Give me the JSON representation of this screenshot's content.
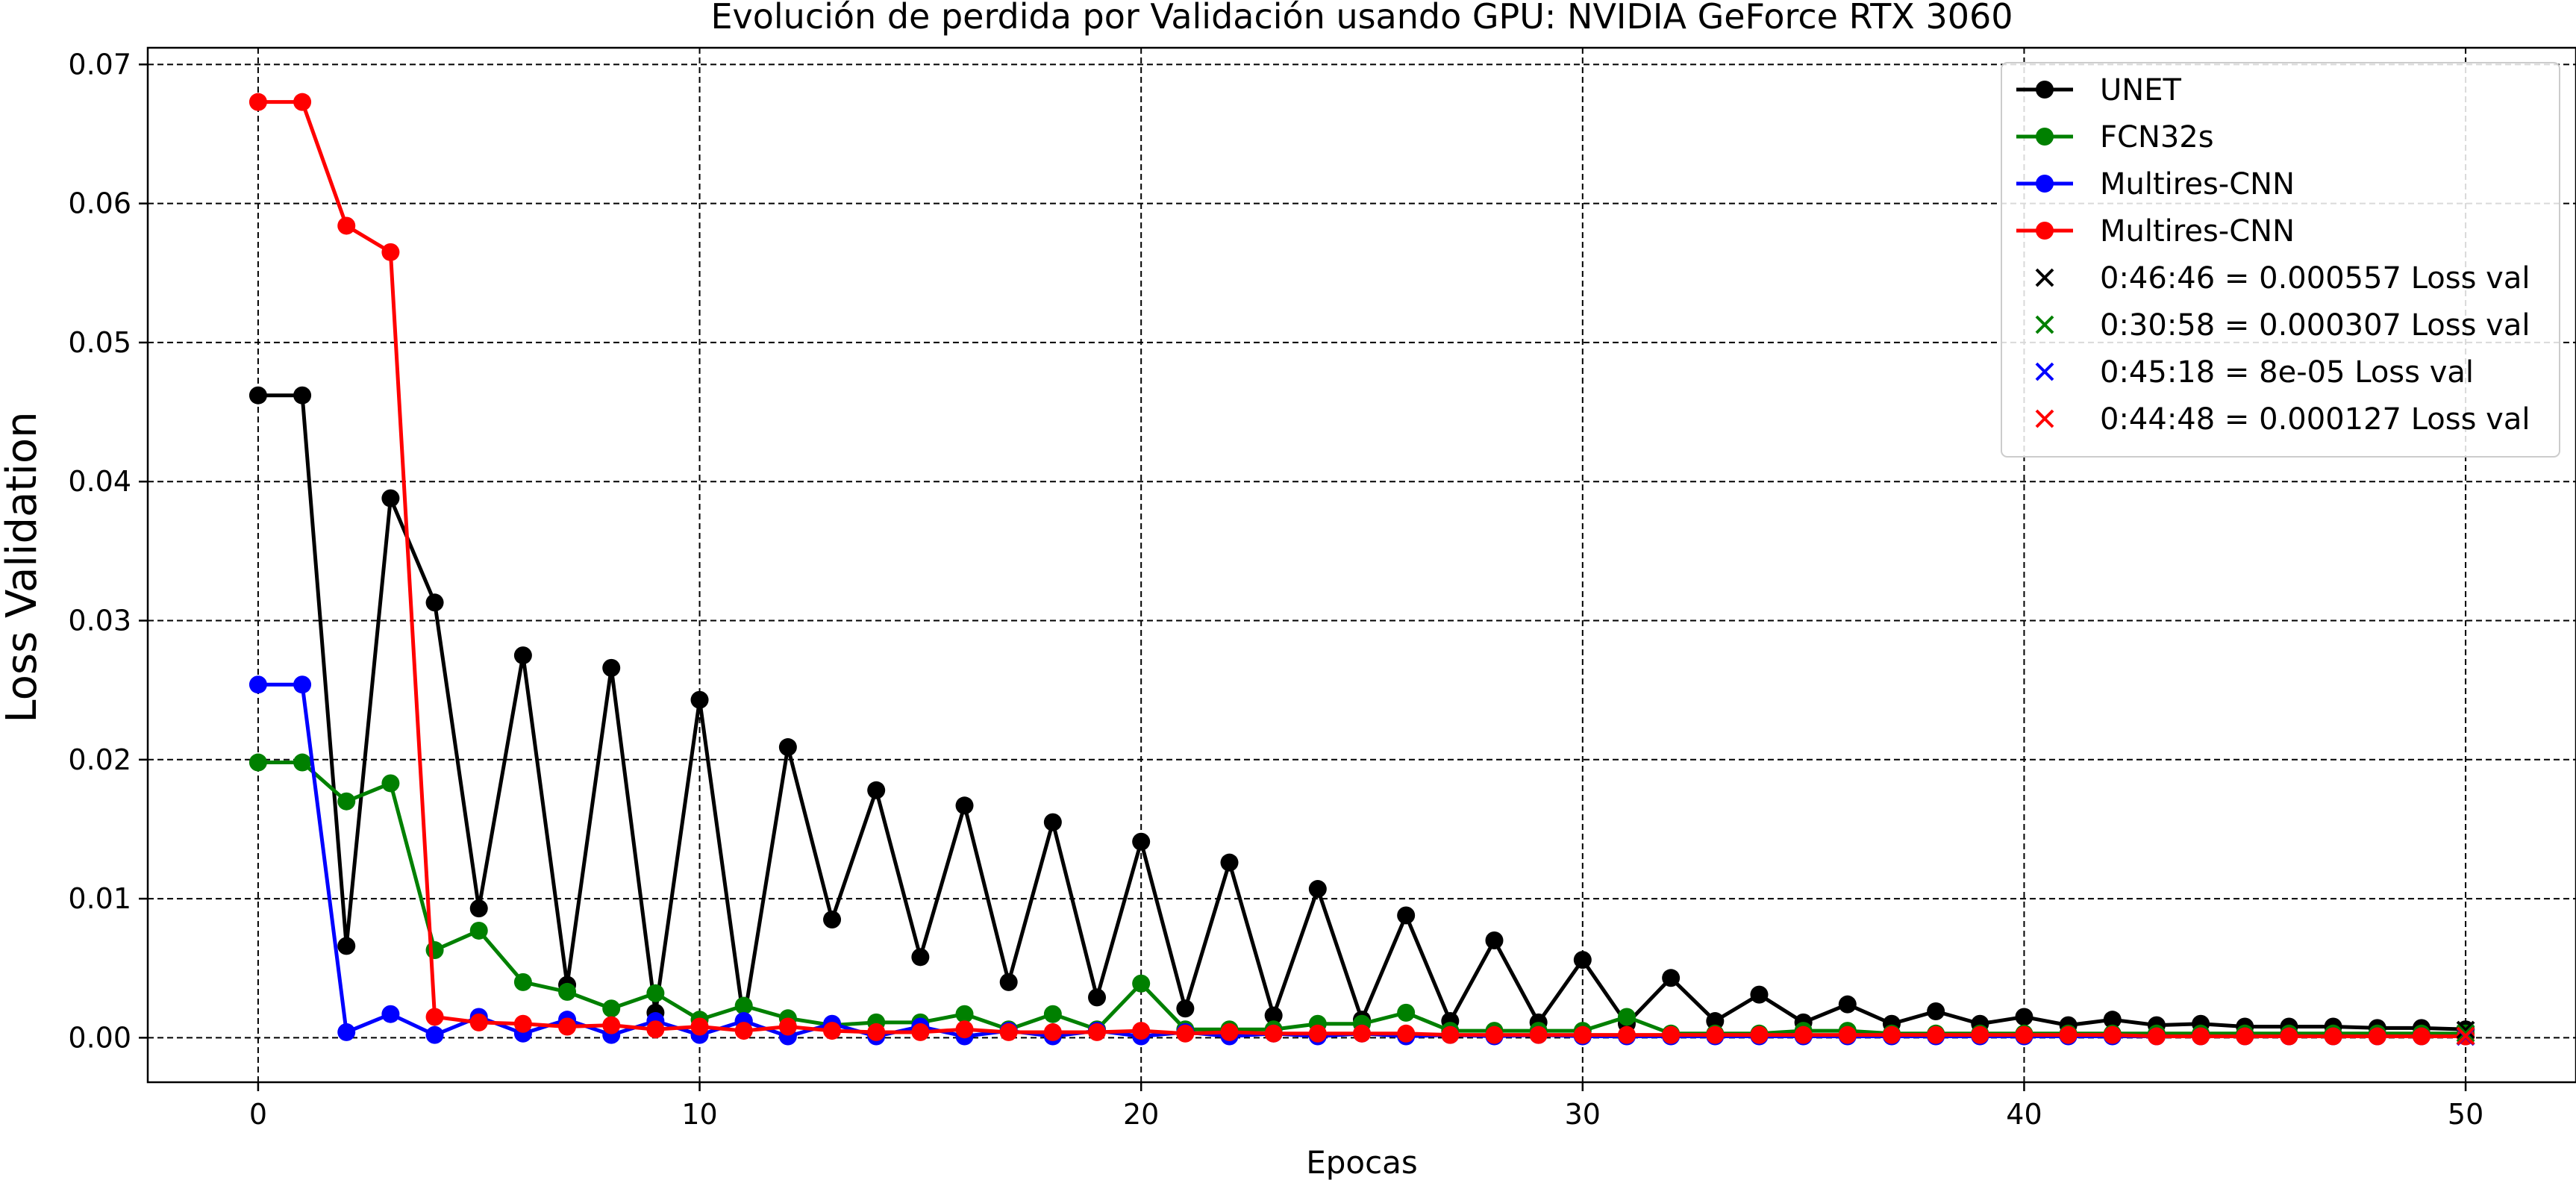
{
  "chart_data": {
    "type": "line",
    "title": "Evolución de perdida por Validación usando GPU: NVIDIA GeForce RTX 3060",
    "xlabel": "Epocas",
    "ylabel": "Loss Validation",
    "xlim": [
      -2.5,
      52.5
    ],
    "ylim": [
      -0.0032,
      0.0712
    ],
    "xticks": [
      0,
      10,
      20,
      30,
      40,
      50
    ],
    "yticks": [
      0.0,
      0.01,
      0.02,
      0.03,
      0.04,
      0.05,
      0.06,
      0.07
    ],
    "yticklabels": [
      "0.00",
      "0.01",
      "0.02",
      "0.03",
      "0.04",
      "0.05",
      "0.06",
      "0.07"
    ],
    "grid": true,
    "legend_position": "top-right",
    "series": [
      {
        "name": "UNET",
        "color": "#000000",
        "values": [
          0.0462,
          0.0462,
          0.0066,
          0.0388,
          0.0313,
          0.0093,
          0.0275,
          0.0038,
          0.0266,
          0.0018,
          0.0243,
          0.0012,
          0.0209,
          0.0085,
          0.0178,
          0.0058,
          0.0167,
          0.004,
          0.0155,
          0.0029,
          0.0141,
          0.0021,
          0.0126,
          0.0016,
          0.0107,
          0.0013,
          0.0088,
          0.0012,
          0.007,
          0.0011,
          0.0056,
          0.001,
          0.0043,
          0.0012,
          0.0031,
          0.0011,
          0.0024,
          0.001,
          0.0019,
          0.001,
          0.0015,
          0.0009,
          0.0013,
          0.0009,
          0.001,
          0.0008,
          0.0008,
          0.0008,
          0.0007,
          0.0007,
          0.0006
        ]
      },
      {
        "name": "FCN32s",
        "color": "#008000",
        "values": [
          0.0198,
          0.0198,
          0.017,
          0.0183,
          0.0063,
          0.0077,
          0.004,
          0.0033,
          0.0021,
          0.0032,
          0.0013,
          0.0023,
          0.0014,
          0.0009,
          0.0011,
          0.0011,
          0.0017,
          0.0006,
          0.0017,
          0.0006,
          0.0039,
          0.0006,
          0.0006,
          0.0006,
          0.001,
          0.001,
          0.0018,
          0.0005,
          0.0005,
          0.0005,
          0.0005,
          0.0015,
          0.0003,
          0.0003,
          0.0003,
          0.0005,
          0.0005,
          0.0003,
          0.0003,
          0.0003,
          0.0003,
          0.0003,
          0.0003,
          0.0003,
          0.0003,
          0.0003,
          0.0003,
          0.0003,
          0.0003,
          0.0003,
          0.0003
        ]
      },
      {
        "name": "Multires-CNN",
        "color": "#0000ff",
        "values": [
          0.0254,
          0.0254,
          0.0004,
          0.0017,
          0.0002,
          0.0015,
          0.0003,
          0.0013,
          0.0002,
          0.0012,
          0.0002,
          0.0012,
          0.0001,
          0.001,
          0.0001,
          0.0008,
          0.0001,
          0.0005,
          0.0001,
          0.0005,
          0.0001,
          0.0004,
          0.0001,
          0.0003,
          0.0001,
          0.0003,
          0.0001,
          0.0002,
          0.0001,
          0.0002,
          0.0001,
          0.0001,
          0.0001,
          0.0001,
          0.0001,
          0.0001,
          0.0001,
          0.0001,
          0.0001,
          0.0001,
          0.0001,
          0.0001,
          0.0001,
          0.0001,
          0.0001,
          0.0001,
          0.0001,
          0.0001,
          0.0001,
          0.0001,
          0.0001
        ]
      },
      {
        "name": "Multires-CNN",
        "color": "#ff0000",
        "values": [
          0.0673,
          0.0673,
          0.0584,
          0.0565,
          0.0015,
          0.0011,
          0.001,
          0.0008,
          0.0009,
          0.0006,
          0.0008,
          0.0005,
          0.0008,
          0.0005,
          0.0004,
          0.0004,
          0.0006,
          0.0004,
          0.0004,
          0.0004,
          0.0005,
          0.0003,
          0.0004,
          0.0003,
          0.0003,
          0.0003,
          0.0003,
          0.0002,
          0.0002,
          0.0002,
          0.0002,
          0.0002,
          0.0002,
          0.0002,
          0.0002,
          0.0002,
          0.0002,
          0.0002,
          0.0002,
          0.0002,
          0.0002,
          0.0002,
          0.0002,
          0.0001,
          0.0001,
          0.0001,
          0.0001,
          0.0001,
          0.0001,
          0.0001,
          0.0001
        ]
      }
    ],
    "best_markers": [
      {
        "label": "0:46:46 = 0.000557 Loss val",
        "color": "#000000",
        "x": 50,
        "y": 0.000557
      },
      {
        "label": "0:30:58 = 0.000307 Loss val",
        "color": "#008000",
        "x": 50,
        "y": 0.000307
      },
      {
        "label": "0:45:18 = 8e-05 Loss val",
        "color": "#0000ff",
        "x": 50,
        "y": 8e-05
      },
      {
        "label": "0:44:48 = 0.000127 Loss val",
        "color": "#ff0000",
        "x": 50,
        "y": 0.000127
      }
    ]
  }
}
